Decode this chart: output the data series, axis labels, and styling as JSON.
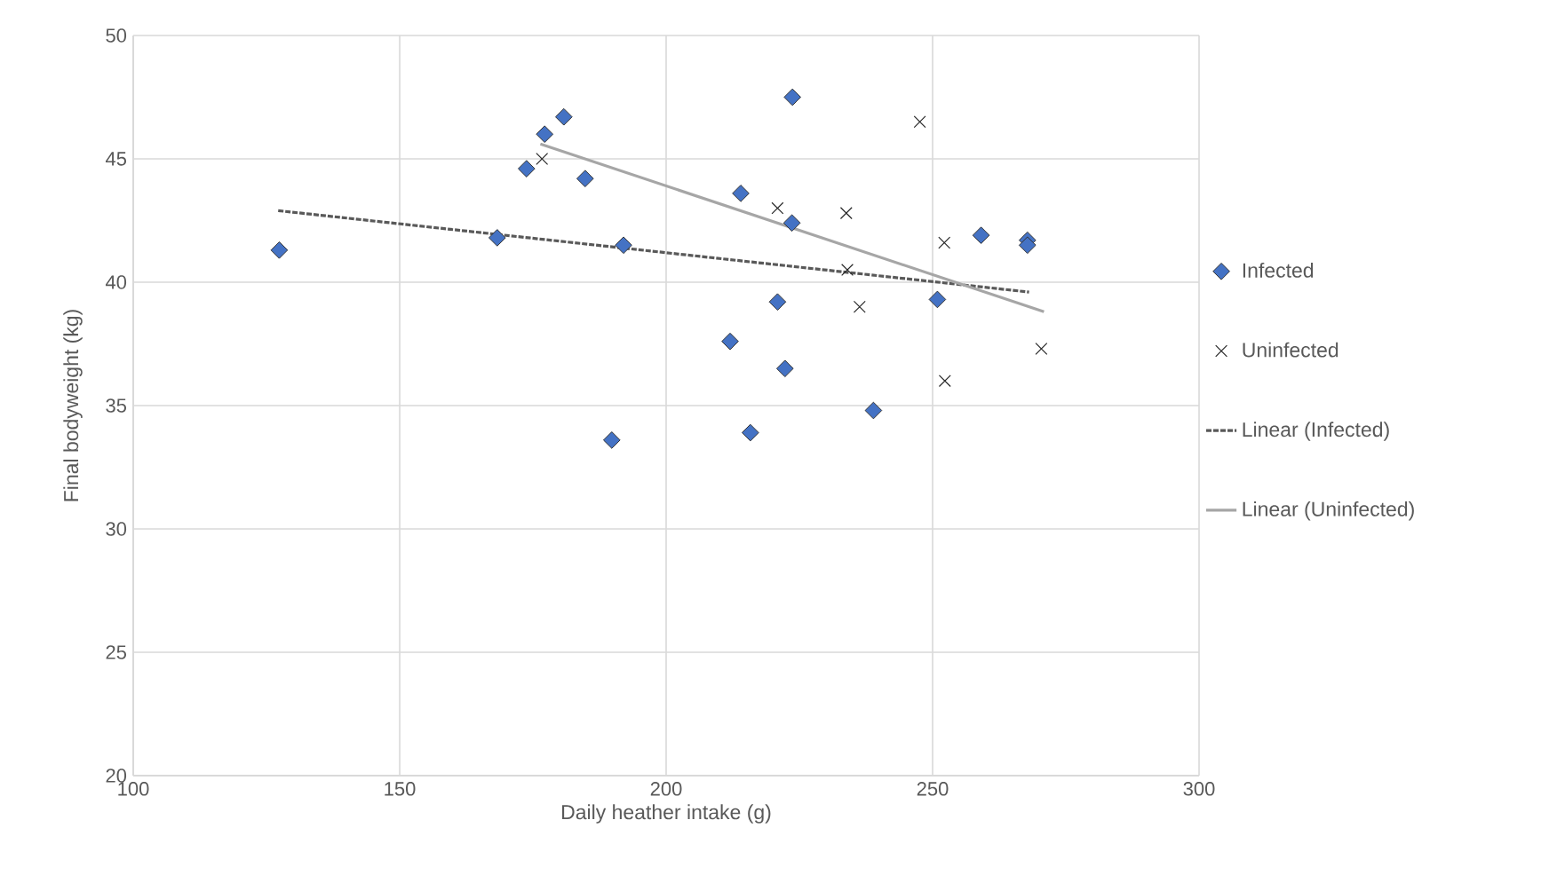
{
  "chart_data": {
    "type": "scatter",
    "xlabel": "Daily heather intake (g)",
    "ylabel": "Final bodyweight (kg)",
    "xlim": [
      100,
      300
    ],
    "ylim": [
      20,
      50
    ],
    "xticks": [
      100,
      150,
      200,
      250,
      300
    ],
    "yticks": [
      20,
      25,
      30,
      35,
      40,
      45,
      50
    ],
    "grid": true,
    "legend": "right",
    "series": [
      {
        "name": "Infected",
        "marker": "diamond",
        "color": "#4472c4",
        "x": [
          127.4,
          168.3,
          173.8,
          177.2,
          180.8,
          184.8,
          189.8,
          192,
          214,
          223.7,
          223.6,
          220.9,
          212,
          222.3,
          215.8,
          238.9,
          250.9,
          259.1,
          267.8,
          267.8
        ],
        "values": [
          41.3,
          41.8,
          44.6,
          46.0,
          46.7,
          44.2,
          33.6,
          41.5,
          43.6,
          47.5,
          42.4,
          39.2,
          37.6,
          36.5,
          33.9,
          34.8,
          39.3,
          41.9,
          41.7,
          41.5
        ]
      },
      {
        "name": "Uninfected",
        "marker": "cross",
        "color": "#262626",
        "x": [
          176.7,
          247.6,
          220.9,
          233.8,
          252.2,
          234,
          236.3,
          270.4,
          252.3
        ],
        "values": [
          45.0,
          46.5,
          43.0,
          42.8,
          41.6,
          40.5,
          39.0,
          37.3,
          36.0
        ]
      },
      {
        "name": "Linear (Infected)",
        "type": "line",
        "marker": "none",
        "line_style": "dashed",
        "color": "#595959",
        "x": [
          127.2,
          268.1
        ],
        "values": [
          42.9,
          39.6
        ]
      },
      {
        "name": "Linear (Uninfected)",
        "type": "line",
        "marker": "none",
        "line_style": "solid",
        "color": "#a6a6a6",
        "x": [
          176.4,
          270.9
        ],
        "values": [
          45.6,
          38.8
        ]
      }
    ]
  }
}
